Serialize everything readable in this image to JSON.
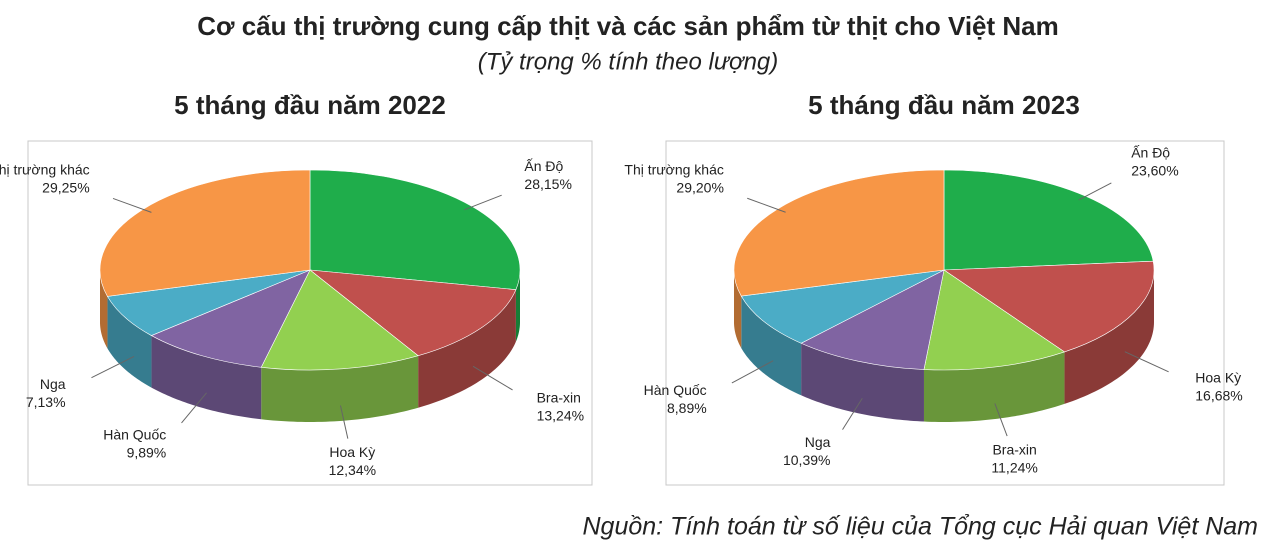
{
  "title": "Cơ cấu thị trường cung cấp thịt và các sản phẩm từ thịt cho Việt Nam",
  "subtitle": "(Tỷ trọng % tính theo lượng)",
  "source": "Nguồn: Tính toán từ số liệu của Tổng cục Hải quan Việt Nam",
  "chart_data": [
    {
      "type": "pie",
      "title": "5 tháng đầu năm 2022",
      "categories": [
        "Ấn Độ",
        "Bra-xin",
        "Hoa Kỳ",
        "Hàn Quốc",
        "Nga",
        "Thị trường khác"
      ],
      "values": [
        28.15,
        13.24,
        12.34,
        9.89,
        7.13,
        29.25
      ],
      "value_labels": [
        "28,15%",
        "13,24%",
        "12,34%",
        "9,89%",
        "7,13%",
        "29,25%"
      ],
      "colors": [
        "#1fad4b",
        "#c0504d",
        "#92d050",
        "#8064a2",
        "#4bacc6",
        "#f79646"
      ]
    },
    {
      "type": "pie",
      "title": "5 tháng đầu năm 2023",
      "categories": [
        "Ấn Độ",
        "Hoa Kỳ",
        "Bra-xin",
        "Nga",
        "Hàn Quốc",
        "Thị trường khác"
      ],
      "values": [
        23.6,
        16.68,
        11.24,
        10.39,
        8.89,
        29.2
      ],
      "value_labels": [
        "23,60%",
        "16,68%",
        "11,24%",
        "10,39%",
        "8,89%",
        "29,20%"
      ],
      "colors": [
        "#1fad4b",
        "#c0504d",
        "#92d050",
        "#8064a2",
        "#4bacc6",
        "#f79646"
      ]
    }
  ]
}
